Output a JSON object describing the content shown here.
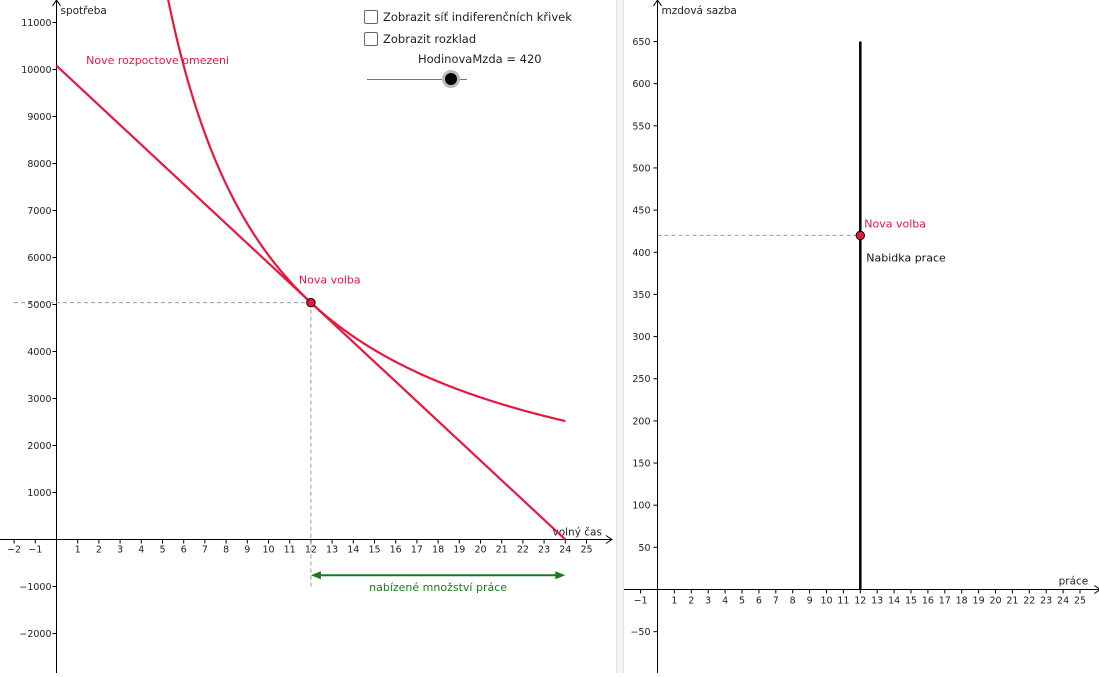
{
  "controls": {
    "checkbox_indifference": "Zobrazit síť indiferenčních křivek",
    "checkbox_decomposition": "Zobrazit rozklad",
    "slider_name": "HodinovaMzda",
    "slider_value": 420,
    "slider_min": 0,
    "slider_max": 500
  },
  "colors": {
    "curve": "#e8173f",
    "point_fill": "#e8173f",
    "arrow": "#1a7a1a",
    "supply_line": "#000000",
    "dashed": "#999999",
    "axis": "#000000"
  },
  "chart_data": [
    {
      "type": "line",
      "id": "leisure-consumption",
      "xlabel": "volný čas",
      "ylabel": "spotřeba",
      "xlim": [
        -2.7,
        26.2
      ],
      "ylim": [
        -2900,
        11500
      ],
      "x_ticks": [
        -2,
        -1,
        1,
        2,
        3,
        4,
        5,
        6,
        7,
        8,
        9,
        10,
        11,
        12,
        13,
        14,
        15,
        16,
        17,
        18,
        19,
        20,
        21,
        22,
        23,
        24,
        25
      ],
      "y_ticks": [
        -2000,
        -1000,
        1000,
        2000,
        3000,
        4000,
        5000,
        6000,
        7000,
        8000,
        9000,
        10000,
        11000
      ],
      "budget_constraint": {
        "label": "Nove rozpoctove omezeni",
        "points": [
          [
            0,
            10080
          ],
          [
            24,
            0
          ]
        ]
      },
      "indifference_curve": {
        "formula": "y = 60480 / x",
        "constant": 60480,
        "x_range": [
          5.2,
          24
        ]
      },
      "choice_point": {
        "label": "Nova volba",
        "x": 12,
        "y": 5040
      },
      "labor_arrow": {
        "label": "nabízené množství práce",
        "from": 12,
        "to": 24,
        "y": -760
      }
    },
    {
      "type": "line",
      "id": "labor-supply",
      "xlabel": "práce",
      "ylabel": "mzdová sazba",
      "xlim": [
        -2,
        26.2
      ],
      "ylim": [
        -100,
        690
      ],
      "x_ticks": [
        -1,
        1,
        2,
        3,
        4,
        5,
        6,
        7,
        8,
        9,
        10,
        11,
        12,
        13,
        14,
        15,
        16,
        17,
        18,
        19,
        20,
        21,
        22,
        23,
        24,
        25
      ],
      "y_ticks": [
        -50,
        50,
        100,
        150,
        200,
        250,
        300,
        350,
        400,
        450,
        500,
        550,
        600,
        650
      ],
      "supply_curve": {
        "label": "Nabidka prace",
        "x": 12,
        "y_range": [
          0,
          650
        ]
      },
      "choice_point": {
        "label": "Nova volba",
        "x": 12,
        "y": 420
      }
    }
  ]
}
